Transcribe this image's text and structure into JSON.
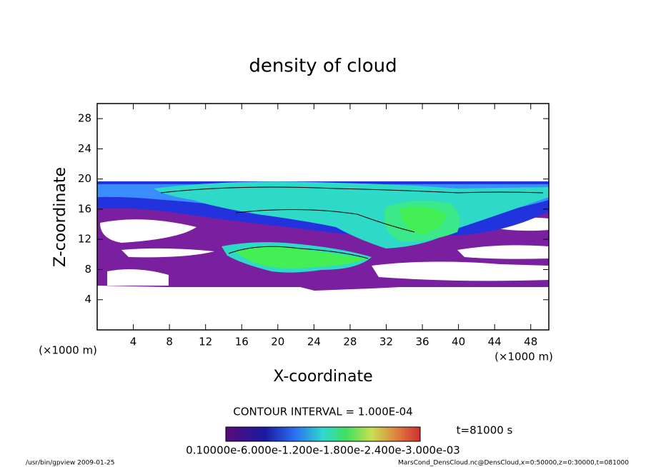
{
  "chart_data": {
    "type": "contour",
    "title": "density of cloud",
    "x_label": "X-coordinate",
    "y_label": "Z-coordinate",
    "x_unit": "(×1000 m)",
    "xlim": [
      0,
      50
    ],
    "xticks": [
      4,
      8,
      12,
      16,
      20,
      24,
      28,
      32,
      36,
      40,
      44,
      48
    ],
    "ylim": [
      0,
      30
    ],
    "yticks": [
      4,
      8,
      12,
      16,
      20,
      24,
      28
    ],
    "contour_interval": "CONTOUR INTERVAL = 1.000E-04",
    "time": "t=81000 s",
    "colorbar_label": "0.10000e-6.000e-1.200e-1.800e-2.400e-3.000e-03",
    "footer_left": "/usr/bin/gpview  2009-01-25",
    "footer_right": "MarsCond_DensCloud.nc@DensCloud,x=0:50000,z=0:30000,t=081000"
  }
}
